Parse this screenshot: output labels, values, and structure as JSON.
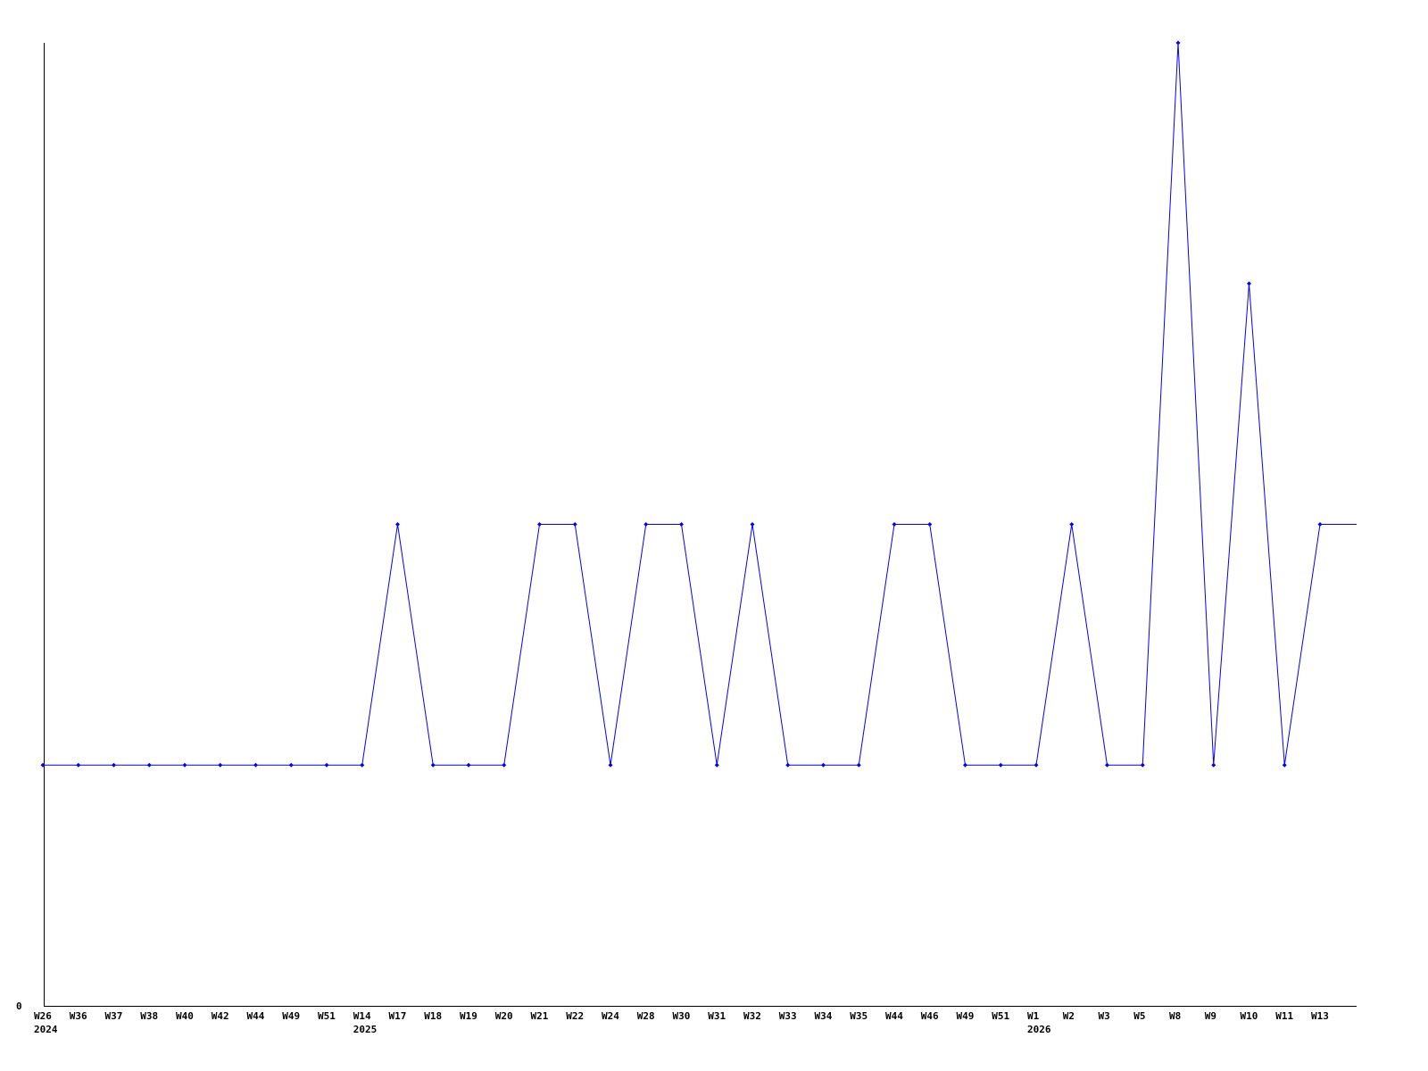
{
  "chart_data": {
    "type": "line",
    "title": "",
    "xlabel": "",
    "ylabel": "",
    "ylim": [
      0,
      4
    ],
    "y_tick_labels": [
      "0"
    ],
    "grid": false,
    "line_color": "#0000ff",
    "categories": [
      "W26",
      "W36",
      "W37",
      "W38",
      "W40",
      "W42",
      "W44",
      "W49",
      "W51",
      "W14",
      "W17",
      "W18",
      "W19",
      "W20",
      "W21",
      "W22",
      "W24",
      "W28",
      "W30",
      "W31",
      "W32",
      "W33",
      "W34",
      "W35",
      "W44",
      "W46",
      "W49",
      "W51",
      "W1",
      "W2",
      "W3",
      "W5",
      "W8",
      "W9",
      "W10",
      "W11",
      "W13"
    ],
    "year_labels": [
      {
        "index": 0,
        "label": "2024"
      },
      {
        "index": 9,
        "label": "2025"
      },
      {
        "index": 28,
        "label": "2026"
      }
    ],
    "series": [
      {
        "values": [
          1,
          1,
          1,
          1,
          1,
          1,
          1,
          1,
          1,
          1,
          2,
          1,
          1,
          1,
          2,
          2,
          1,
          2,
          2,
          1,
          2,
          1,
          1,
          1,
          2,
          2,
          1,
          1,
          1,
          2,
          1,
          1,
          4,
          1,
          3,
          1,
          2
        ]
      }
    ]
  }
}
